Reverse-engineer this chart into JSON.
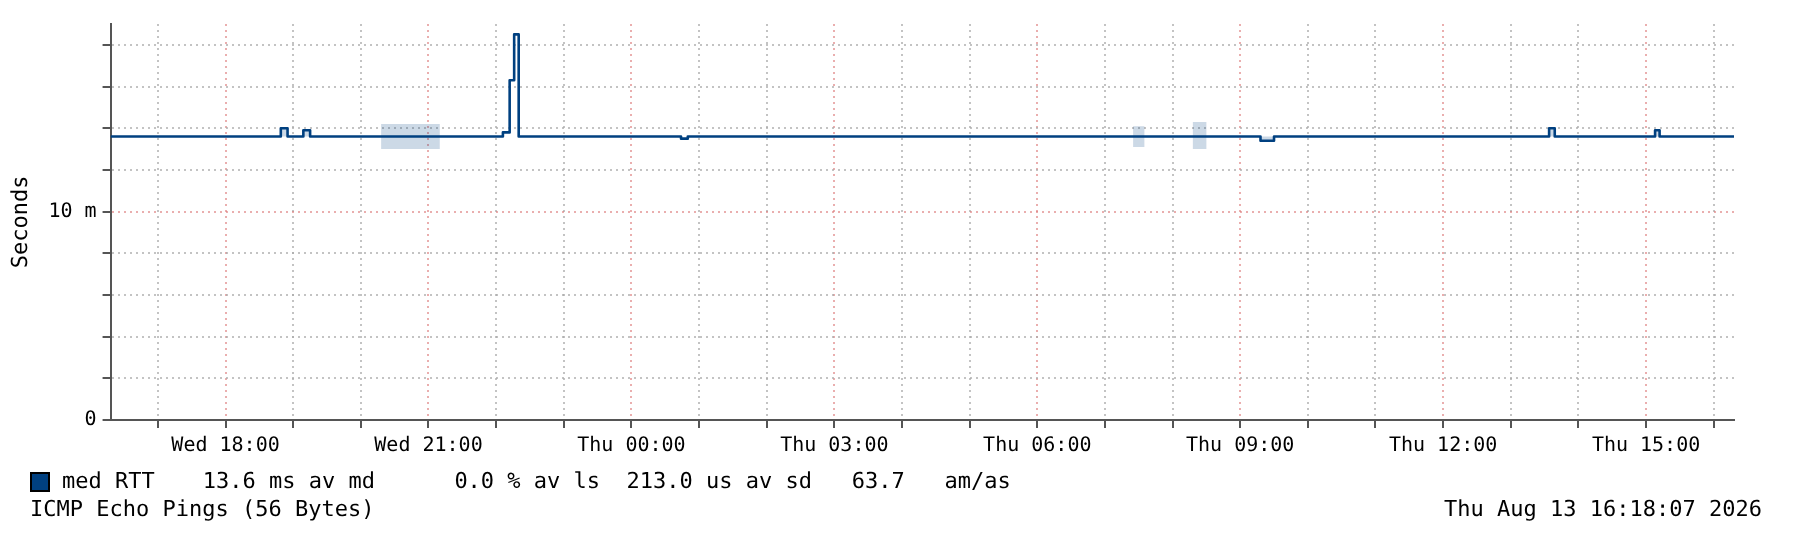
{
  "chart_data": {
    "type": "step",
    "ylabel": "Seconds",
    "legend": "bottom",
    "grid": true,
    "xlim": [
      "2026-08-12T16:18",
      "2026-08-13T16:18"
    ],
    "xticks": [
      {
        "value": "2026-08-12T17:00",
        "label": null
      },
      {
        "value": "2026-08-12T18:00",
        "label": "Wed 18:00"
      },
      {
        "value": "2026-08-12T19:00",
        "label": null
      },
      {
        "value": "2026-08-12T20:00",
        "label": null
      },
      {
        "value": "2026-08-12T21:00",
        "label": "Wed 21:00"
      },
      {
        "value": "2026-08-12T22:00",
        "label": null
      },
      {
        "value": "2026-08-12T23:00",
        "label": null
      },
      {
        "value": "2026-08-13T00:00",
        "label": "Thu 00:00"
      },
      {
        "value": "2026-08-13T01:00",
        "label": null
      },
      {
        "value": "2026-08-13T02:00",
        "label": null
      },
      {
        "value": "2026-08-13T03:00",
        "label": "Thu 03:00"
      },
      {
        "value": "2026-08-13T04:00",
        "label": null
      },
      {
        "value": "2026-08-13T05:00",
        "label": null
      },
      {
        "value": "2026-08-13T06:00",
        "label": "Thu 06:00"
      },
      {
        "value": "2026-08-13T07:00",
        "label": null
      },
      {
        "value": "2026-08-13T08:00",
        "label": null
      },
      {
        "value": "2026-08-13T09:00",
        "label": "Thu 09:00"
      },
      {
        "value": "2026-08-13T10:00",
        "label": null
      },
      {
        "value": "2026-08-13T11:00",
        "label": null
      },
      {
        "value": "2026-08-13T12:00",
        "label": "Thu 12:00"
      },
      {
        "value": "2026-08-13T13:00",
        "label": null
      },
      {
        "value": "2026-08-13T14:00",
        "label": null
      },
      {
        "value": "2026-08-13T15:00",
        "label": "Thu 15:00"
      },
      {
        "value": "2026-08-13T16:00",
        "label": null
      }
    ],
    "ylim": [
      0,
      19
    ],
    "yticks": [
      0,
      {
        "value": 2,
        "label": null
      },
      {
        "value": 4,
        "label": null
      },
      {
        "value": 6,
        "label": null
      },
      {
        "value": 8,
        "label": null
      },
      {
        "value": 10,
        "label": "10 m"
      },
      {
        "value": 12,
        "label": null
      },
      {
        "value": 14,
        "label": null
      },
      {
        "value": 16,
        "label": null
      },
      {
        "value": 18,
        "label": null
      }
    ],
    "x": [
      "2026-08-12T16:18",
      "2026-08-12T18:49",
      "2026-08-12T18:55",
      "2026-08-12T19:09",
      "2026-08-12T19:15",
      "2026-08-12T20:18",
      "2026-08-12T21:10",
      "2026-08-12T22:06",
      "2026-08-12T22:12",
      "2026-08-12T22:16",
      "2026-08-12T22:20",
      "2026-08-13T00:44",
      "2026-08-13T00:50",
      "2026-08-13T07:25",
      "2026-08-13T07:35",
      "2026-08-13T08:18",
      "2026-08-13T08:30",
      "2026-08-13T09:18",
      "2026-08-13T09:30",
      "2026-08-13T13:34",
      "2026-08-13T13:39",
      "2026-08-13T15:08",
      "2026-08-13T15:12",
      "2026-08-13T16:18"
    ],
    "series": [
      {
        "name": "med RTT",
        "color": "#004080",
        "values": [
          13.6,
          14.0,
          13.6,
          13.9,
          13.6,
          13.6,
          13.6,
          13.8,
          16.3,
          18.5,
          13.6,
          13.5,
          13.6,
          13.6,
          13.6,
          13.6,
          13.6,
          13.4,
          13.6,
          14.0,
          13.6,
          13.9,
          13.6,
          13.6
        ],
        "lower": [
          13.6,
          13.6,
          13.6,
          13.6,
          13.6,
          13.0,
          13.6,
          13.8,
          16.3,
          18.5,
          13.6,
          13.5,
          13.6,
          13.1,
          13.6,
          13.0,
          13.6,
          13.4,
          13.6,
          13.6,
          13.6,
          13.6,
          13.6,
          13.6
        ],
        "upper": [
          13.6,
          14.0,
          13.6,
          13.9,
          13.6,
          14.2,
          13.6,
          13.8,
          16.3,
          18.5,
          13.6,
          13.5,
          13.6,
          14.1,
          13.6,
          14.3,
          13.6,
          13.6,
          13.6,
          14.0,
          13.6,
          13.9,
          13.6,
          13.6
        ]
      }
    ],
    "annotations": [
      "13.6 ms av md      0.0 % av ls  213.0 us av sd   63.7   am/as",
      "ICMP Echo Pings (56 Bytes)",
      "Thu Aug 13 16:18:07 2026"
    ]
  }
}
